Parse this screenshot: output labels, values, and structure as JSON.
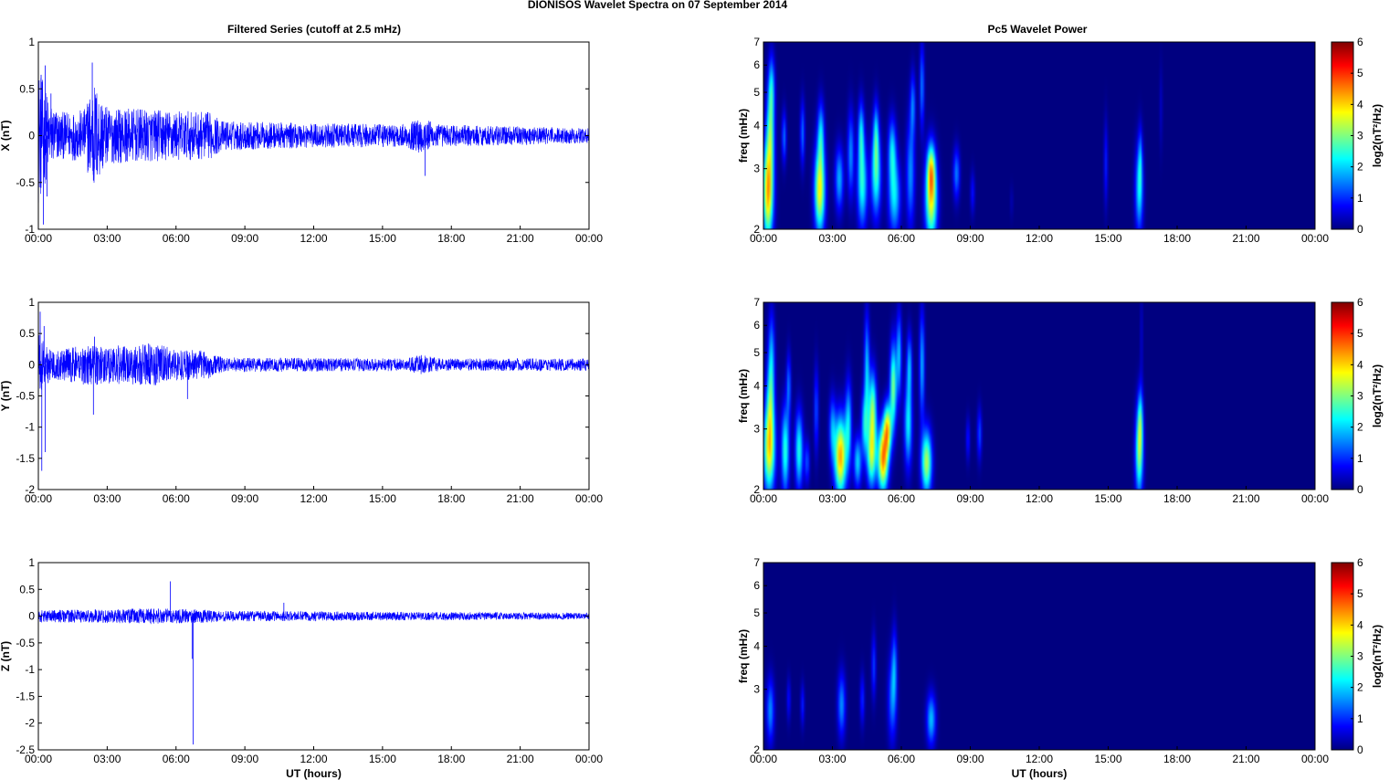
{
  "figure": {
    "suptitle": "DIONISOS Wavelet Spectra on 07 September 2014",
    "left_title": "Filtered Series (cutoff at 2.5 mHz)",
    "right_title": "Pc5 Wavelet Power",
    "xlabel": "UT (hours)"
  },
  "chart_data": [
    {
      "type": "line",
      "panel": "X",
      "ylabel": "X (nT)",
      "x_ticks": [
        "00:00",
        "03:00",
        "06:00",
        "09:00",
        "12:00",
        "15:00",
        "18:00",
        "21:00",
        "00:00"
      ],
      "ylim": [
        -1,
        1
      ],
      "y_ticks": [
        "1",
        "0.5",
        "0",
        "-0.5",
        "-1"
      ],
      "y_tick_values": [
        1,
        0.5,
        0,
        -0.5,
        -1
      ],
      "color": "#0000ff",
      "envelope": [
        [
          0.0,
          0.75
        ],
        [
          0.5,
          0.35
        ],
        [
          1.0,
          0.25
        ],
        [
          2.0,
          0.28
        ],
        [
          2.4,
          0.6
        ],
        [
          3.0,
          0.3
        ],
        [
          5.0,
          0.28
        ],
        [
          7.5,
          0.25
        ],
        [
          8.0,
          0.16
        ],
        [
          12.0,
          0.13
        ],
        [
          16.0,
          0.12
        ],
        [
          16.7,
          0.2
        ],
        [
          17.5,
          0.12
        ],
        [
          24.0,
          0.08
        ]
      ],
      "spikes": [
        {
          "x": 0.12,
          "y": 0.65
        },
        {
          "x": 0.22,
          "y": -0.95
        },
        {
          "x": 0.3,
          "y": 0.75
        },
        {
          "x": 0.38,
          "y": -0.65
        },
        {
          "x": 0.55,
          "y": 0.45
        },
        {
          "x": 2.35,
          "y": 0.78
        },
        {
          "x": 2.4,
          "y": -0.48
        },
        {
          "x": 16.85,
          "y": -0.43
        }
      ]
    },
    {
      "type": "line",
      "panel": "Y",
      "ylabel": "Y (nT)",
      "x_ticks": [
        "00:00",
        "03:00",
        "06:00",
        "09:00",
        "12:00",
        "15:00",
        "18:00",
        "21:00",
        "00:00"
      ],
      "ylim": [
        -2,
        1
      ],
      "y_ticks": [
        "1",
        "0.5",
        "0",
        "-0.5",
        "-1",
        "-1.5",
        "-2"
      ],
      "y_tick_values": [
        1,
        0.5,
        0,
        -0.5,
        -1,
        -1.5,
        -2
      ],
      "color": "#0000ff",
      "envelope": [
        [
          0.0,
          0.5
        ],
        [
          0.6,
          0.22
        ],
        [
          2.4,
          0.35
        ],
        [
          3.0,
          0.3
        ],
        [
          5.0,
          0.35
        ],
        [
          6.0,
          0.25
        ],
        [
          7.5,
          0.22
        ],
        [
          8.0,
          0.12
        ],
        [
          16.0,
          0.1
        ],
        [
          16.7,
          0.16
        ],
        [
          17.5,
          0.1
        ],
        [
          24.0,
          0.1
        ]
      ],
      "spikes": [
        {
          "x": 0.08,
          "y": 0.85
        },
        {
          "x": 0.15,
          "y": -1.7
        },
        {
          "x": 0.25,
          "y": 0.62
        },
        {
          "x": 0.3,
          "y": -1.4
        },
        {
          "x": 2.4,
          "y": -0.8
        },
        {
          "x": 2.45,
          "y": 0.45
        },
        {
          "x": 6.5,
          "y": -0.55
        }
      ]
    },
    {
      "type": "line",
      "panel": "Z",
      "ylabel": "Z (nT)",
      "x_ticks": [
        "00:00",
        "03:00",
        "06:00",
        "09:00",
        "12:00",
        "15:00",
        "18:00",
        "21:00",
        "00:00"
      ],
      "xlabel": "UT (hours)",
      "ylim": [
        -2.5,
        1
      ],
      "y_ticks": [
        "1",
        "0.5",
        "0",
        "-0.5",
        "-1",
        "-1.5",
        "-2",
        "-2.5"
      ],
      "y_tick_values": [
        1,
        0.5,
        0,
        -0.5,
        -1,
        -1.5,
        -2,
        -2.5
      ],
      "color": "#0000ff",
      "envelope": [
        [
          0.0,
          0.12
        ],
        [
          2.0,
          0.12
        ],
        [
          5.0,
          0.15
        ],
        [
          7.5,
          0.12
        ],
        [
          8.0,
          0.1
        ],
        [
          24.0,
          0.06
        ]
      ],
      "spikes": [
        {
          "x": 5.75,
          "y": 0.65
        },
        {
          "x": 6.7,
          "y": -0.8
        },
        {
          "x": 6.75,
          "y": -2.4
        },
        {
          "x": 10.7,
          "y": 0.25
        }
      ]
    },
    {
      "type": "heatmap",
      "panel": "X",
      "ylabel": "freq (mHz)",
      "y_scale": "log",
      "ylim": [
        2,
        7
      ],
      "x_ticks": [
        "00:00",
        "03:00",
        "06:00",
        "09:00",
        "12:00",
        "15:00",
        "18:00",
        "21:00",
        "00:00"
      ],
      "y_ticks": [
        "2",
        "3",
        "4",
        "5",
        "6",
        "7"
      ],
      "y_tick_values": [
        2,
        3,
        4,
        5,
        6,
        7
      ],
      "colorbar_label": "log2(nT²/Hz)",
      "colorbar_ticks": [
        "0",
        "1",
        "2",
        "3",
        "4",
        "5",
        "6"
      ],
      "clim": [
        0,
        6
      ],
      "blobs": [
        {
          "t": 0.2,
          "f": 2.55,
          "dt": 0.16,
          "sf": 0.22,
          "p": 4.2
        },
        {
          "t": 0.3,
          "f": 3.8,
          "dt": 0.12,
          "sf": 0.2,
          "p": 2.5
        },
        {
          "t": 0.35,
          "f": 5.2,
          "dt": 0.1,
          "sf": 0.15,
          "p": 1.8
        },
        {
          "t": 0.9,
          "f": 3.7,
          "dt": 0.07,
          "sf": 0.12,
          "p": 1.4
        },
        {
          "t": 1.7,
          "f": 3.8,
          "dt": 0.07,
          "sf": 0.15,
          "p": 1.4
        },
        {
          "t": 2.45,
          "f": 2.6,
          "dt": 0.16,
          "sf": 0.2,
          "p": 3.8
        },
        {
          "t": 2.5,
          "f": 3.8,
          "dt": 0.1,
          "sf": 0.15,
          "p": 1.8
        },
        {
          "t": 3.3,
          "f": 2.8,
          "dt": 0.13,
          "sf": 0.15,
          "p": 1.8
        },
        {
          "t": 3.8,
          "f": 3.3,
          "dt": 0.1,
          "sf": 0.2,
          "p": 1.6
        },
        {
          "t": 4.3,
          "f": 2.7,
          "dt": 0.15,
          "sf": 0.2,
          "p": 2.4
        },
        {
          "t": 4.25,
          "f": 3.8,
          "dt": 0.09,
          "sf": 0.15,
          "p": 1.9
        },
        {
          "t": 4.9,
          "f": 2.9,
          "dt": 0.15,
          "sf": 0.2,
          "p": 2.5
        },
        {
          "t": 4.9,
          "f": 3.8,
          "dt": 0.08,
          "sf": 0.15,
          "p": 1.6
        },
        {
          "t": 5.7,
          "f": 2.5,
          "dt": 0.18,
          "sf": 0.18,
          "p": 2.1
        },
        {
          "t": 5.6,
          "f": 3.4,
          "dt": 0.12,
          "sf": 0.15,
          "p": 1.9
        },
        {
          "t": 6.4,
          "f": 2.9,
          "dt": 0.13,
          "sf": 0.25,
          "p": 1.6
        },
        {
          "t": 6.5,
          "f": 4.6,
          "dt": 0.08,
          "sf": 0.15,
          "p": 1.4
        },
        {
          "t": 6.9,
          "f": 5.2,
          "dt": 0.07,
          "sf": 0.2,
          "p": 1.5
        },
        {
          "t": 7.3,
          "f": 2.45,
          "dt": 0.18,
          "sf": 0.2,
          "p": 3.6
        },
        {
          "t": 7.3,
          "f": 3.0,
          "dt": 0.12,
          "sf": 0.12,
          "p": 2.3
        },
        {
          "t": 8.4,
          "f": 2.9,
          "dt": 0.1,
          "sf": 0.12,
          "p": 1.5
        },
        {
          "t": 9.1,
          "f": 2.55,
          "dt": 0.07,
          "sf": 0.1,
          "p": 0.8
        },
        {
          "t": 10.8,
          "f": 2.4,
          "dt": 0.05,
          "sf": 0.08,
          "p": 0.3
        },
        {
          "t": 14.9,
          "f": 3.1,
          "dt": 0.06,
          "sf": 0.2,
          "p": 0.9
        },
        {
          "t": 16.35,
          "f": 2.6,
          "dt": 0.12,
          "sf": 0.2,
          "p": 2.1
        },
        {
          "t": 16.4,
          "f": 3.2,
          "dt": 0.06,
          "sf": 0.15,
          "p": 1.1
        },
        {
          "t": 17.3,
          "f": 4.5,
          "dt": 0.05,
          "sf": 0.2,
          "p": 0.4
        }
      ]
    },
    {
      "type": "heatmap",
      "panel": "Y",
      "ylabel": "freq (mHz)",
      "y_scale": "log",
      "ylim": [
        2,
        7
      ],
      "x_ticks": [
        "00:00",
        "03:00",
        "06:00",
        "09:00",
        "12:00",
        "15:00",
        "18:00",
        "21:00",
        "00:00"
      ],
      "y_ticks": [
        "2",
        "3",
        "4",
        "5",
        "6",
        "7"
      ],
      "y_tick_values": [
        2,
        3,
        4,
        5,
        6,
        7
      ],
      "colorbar_label": "log2(nT²/Hz)",
      "colorbar_ticks": [
        "0",
        "1",
        "2",
        "3",
        "4",
        "5",
        "6"
      ],
      "clim": [
        0,
        6
      ],
      "blobs": [
        {
          "t": 0.25,
          "f": 2.6,
          "dt": 0.18,
          "sf": 0.2,
          "p": 3.6
        },
        {
          "t": 0.3,
          "f": 3.6,
          "dt": 0.12,
          "sf": 0.2,
          "p": 2.1
        },
        {
          "t": 0.35,
          "f": 5.0,
          "dt": 0.1,
          "sf": 0.2,
          "p": 1.5
        },
        {
          "t": 0.95,
          "f": 2.6,
          "dt": 0.12,
          "sf": 0.2,
          "p": 2.5
        },
        {
          "t": 1.1,
          "f": 4.0,
          "dt": 0.07,
          "sf": 0.15,
          "p": 1.4
        },
        {
          "t": 1.55,
          "f": 2.6,
          "dt": 0.12,
          "sf": 0.18,
          "p": 2.4
        },
        {
          "t": 1.9,
          "f": 2.4,
          "dt": 0.08,
          "sf": 0.1,
          "p": 1.2
        },
        {
          "t": 2.3,
          "f": 3.4,
          "dt": 0.07,
          "sf": 0.2,
          "p": 1.2
        },
        {
          "t": 3.0,
          "f": 3.0,
          "dt": 0.1,
          "sf": 0.15,
          "p": 1.6
        },
        {
          "t": 3.35,
          "f": 2.5,
          "dt": 0.18,
          "sf": 0.18,
          "p": 4.3
        },
        {
          "t": 3.7,
          "f": 3.1,
          "dt": 0.1,
          "sf": 0.2,
          "p": 2.0
        },
        {
          "t": 4.1,
          "f": 2.4,
          "dt": 0.12,
          "sf": 0.12,
          "p": 2.0
        },
        {
          "t": 4.4,
          "f": 3.1,
          "dt": 0.1,
          "sf": 0.15,
          "p": 2.0
        },
        {
          "t": 4.5,
          "f": 4.5,
          "dt": 0.08,
          "sf": 0.25,
          "p": 1.9
        },
        {
          "t": 4.7,
          "f": 2.5,
          "dt": 0.14,
          "sf": 0.15,
          "p": 2.9
        },
        {
          "t": 4.75,
          "f": 3.4,
          "dt": 0.12,
          "sf": 0.18,
          "p": 3.0
        },
        {
          "t": 5.2,
          "f": 2.45,
          "dt": 0.16,
          "sf": 0.15,
          "p": 4.4
        },
        {
          "t": 5.4,
          "f": 3.0,
          "dt": 0.12,
          "sf": 0.12,
          "p": 3.6
        },
        {
          "t": 5.65,
          "f": 4.0,
          "dt": 0.1,
          "sf": 0.2,
          "p": 3.0
        },
        {
          "t": 5.9,
          "f": 4.9,
          "dt": 0.08,
          "sf": 0.2,
          "p": 1.9
        },
        {
          "t": 6.3,
          "f": 3.1,
          "dt": 0.12,
          "sf": 0.2,
          "p": 2.2
        },
        {
          "t": 6.35,
          "f": 4.6,
          "dt": 0.08,
          "sf": 0.15,
          "p": 1.7
        },
        {
          "t": 6.9,
          "f": 4.6,
          "dt": 0.08,
          "sf": 0.25,
          "p": 1.8
        },
        {
          "t": 7.1,
          "f": 2.4,
          "dt": 0.16,
          "sf": 0.15,
          "p": 3.3
        },
        {
          "t": 8.9,
          "f": 2.8,
          "dt": 0.06,
          "sf": 0.1,
          "p": 0.9
        },
        {
          "t": 9.4,
          "f": 2.9,
          "dt": 0.07,
          "sf": 0.12,
          "p": 1.2
        },
        {
          "t": 16.35,
          "f": 2.55,
          "dt": 0.12,
          "sf": 0.2,
          "p": 2.9
        },
        {
          "t": 16.4,
          "f": 3.2,
          "dt": 0.08,
          "sf": 0.15,
          "p": 1.7
        },
        {
          "t": 16.45,
          "f": 5.5,
          "dt": 0.04,
          "sf": 0.25,
          "p": 0.5
        }
      ]
    },
    {
      "type": "heatmap",
      "panel": "Z",
      "ylabel": "freq (mHz)",
      "y_scale": "log",
      "ylim": [
        2,
        7
      ],
      "x_ticks": [
        "00:00",
        "03:00",
        "06:00",
        "09:00",
        "12:00",
        "15:00",
        "18:00",
        "21:00",
        "00:00"
      ],
      "xlabel": "UT (hours)",
      "y_ticks": [
        "2",
        "3",
        "4",
        "5",
        "6",
        "7"
      ],
      "y_tick_values": [
        2,
        3,
        4,
        5,
        6,
        7
      ],
      "colorbar_label": "log2(nT²/Hz)",
      "colorbar_ticks": [
        "0",
        "1",
        "2",
        "3",
        "4",
        "5",
        "6"
      ],
      "clim": [
        0,
        6
      ],
      "blobs": [
        {
          "t": 0.3,
          "f": 2.6,
          "dt": 0.12,
          "sf": 0.15,
          "p": 1.6
        },
        {
          "t": 1.1,
          "f": 2.8,
          "dt": 0.06,
          "sf": 0.1,
          "p": 0.8
        },
        {
          "t": 1.7,
          "f": 2.7,
          "dt": 0.06,
          "sf": 0.1,
          "p": 0.9
        },
        {
          "t": 3.4,
          "f": 2.7,
          "dt": 0.12,
          "sf": 0.15,
          "p": 1.6
        },
        {
          "t": 4.3,
          "f": 2.8,
          "dt": 0.07,
          "sf": 0.12,
          "p": 1.0
        },
        {
          "t": 4.8,
          "f": 3.5,
          "dt": 0.07,
          "sf": 0.15,
          "p": 1.1
        },
        {
          "t": 5.6,
          "f": 2.8,
          "dt": 0.13,
          "sf": 0.2,
          "p": 1.4
        },
        {
          "t": 5.7,
          "f": 3.5,
          "dt": 0.08,
          "sf": 0.18,
          "p": 1.3
        },
        {
          "t": 7.3,
          "f": 2.45,
          "dt": 0.14,
          "sf": 0.12,
          "p": 1.9
        }
      ]
    }
  ]
}
